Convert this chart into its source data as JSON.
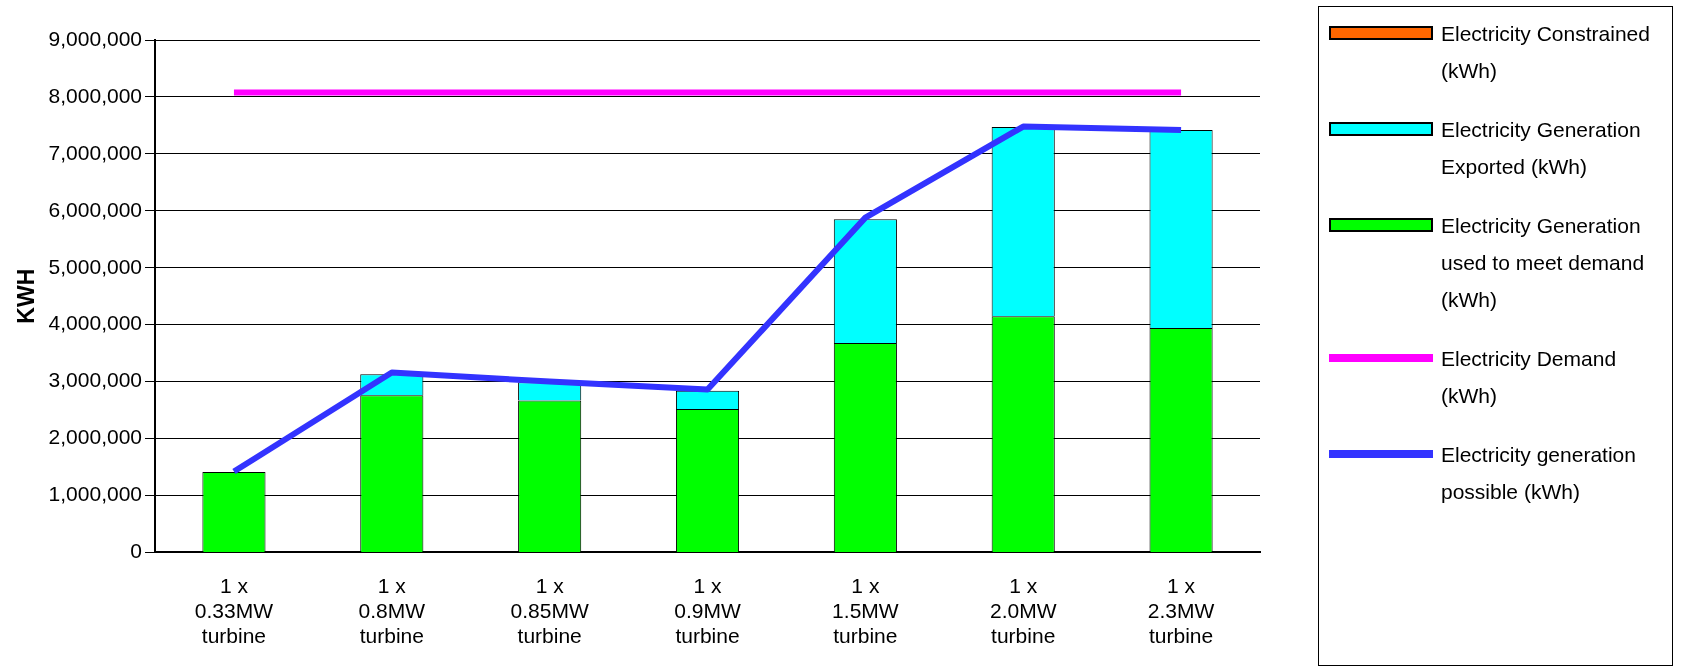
{
  "chart_data": {
    "type": "bar",
    "stacked": true,
    "ylabel": "KWH",
    "grid": "y",
    "legend": "right",
    "categories": [
      "1 x 0.33MW turbine",
      "1 x 0.8MW turbine",
      "1 x 0.85MW turbine",
      "1 x 0.9MW turbine",
      "1 x 1.5MW turbine",
      "1 x 2.0MW turbine",
      "1 x 2.3MW turbine"
    ],
    "ylim": [
      0,
      9000000
    ],
    "yticks": [
      0,
      {
        "value": 1000000,
        "label": "1,000,000"
      },
      {
        "value": 2000000,
        "label": "2,000,000"
      },
      {
        "value": 3000000,
        "label": "3,000,000"
      },
      {
        "value": 4000000,
        "label": "4,000,000"
      },
      {
        "value": 5000000,
        "label": "5,000,000"
      },
      {
        "value": 6000000,
        "label": "6,000,000"
      },
      {
        "value": 7000000,
        "label": "7,000,000"
      },
      {
        "value": 8000000,
        "label": "8,000,000"
      },
      {
        "value": 9000000,
        "label": "9,000,000"
      }
    ],
    "series": [
      {
        "name": "Electricity Generation used to meet demand (kWh)",
        "color": "#00ff00",
        "values": [
          1410000,
          2760000,
          2670000,
          2520000,
          3680000,
          4150000,
          3940000
        ]
      },
      {
        "name": "Electricity Generation Exported (kWh)",
        "color": "#00ffff",
        "values": [
          0,
          370000,
          320000,
          320000,
          2170000,
          3320000,
          3480000
        ]
      },
      {
        "name": "Electricity Constrained (kWh)",
        "color": "#ff6600",
        "values": [
          0,
          0,
          0,
          0,
          0,
          0,
          0
        ]
      },
      {
        "name": "Electricity Demand (kWh)",
        "type": "line",
        "color": "#ff00ff",
        "marker": "none",
        "values": [
          8080000,
          8080000,
          8080000,
          8080000,
          8080000,
          8080000,
          8080000
        ]
      },
      {
        "name": "Electricity generation possible (kWh)",
        "type": "line",
        "color": "#3333ff",
        "marker": "none",
        "values": [
          1420000,
          3160000,
          3000000,
          2860000,
          5880000,
          7480000,
          7420000
        ]
      }
    ]
  }
}
